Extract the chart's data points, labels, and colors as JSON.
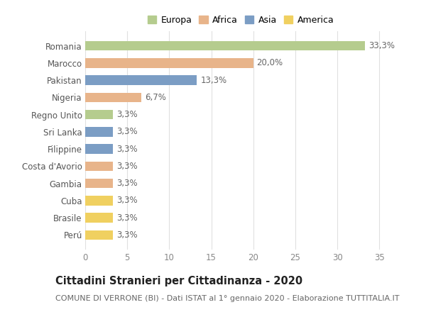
{
  "countries": [
    "Romania",
    "Marocco",
    "Pakistan",
    "Nigeria",
    "Regno Unito",
    "Sri Lanka",
    "Filippine",
    "Costa d'Avorio",
    "Gambia",
    "Cuba",
    "Brasile",
    "Perú"
  ],
  "values": [
    33.3,
    20.0,
    13.3,
    6.7,
    3.3,
    3.3,
    3.3,
    3.3,
    3.3,
    3.3,
    3.3,
    3.3
  ],
  "labels": [
    "33,3%",
    "20,0%",
    "13,3%",
    "6,7%",
    "3,3%",
    "3,3%",
    "3,3%",
    "3,3%",
    "3,3%",
    "3,3%",
    "3,3%",
    "3,3%"
  ],
  "continents": [
    "Europa",
    "Africa",
    "Asia",
    "Africa",
    "Europa",
    "Asia",
    "Asia",
    "Africa",
    "Africa",
    "America",
    "America",
    "America"
  ],
  "colors": {
    "Europa": "#b5cc8e",
    "Africa": "#e8b48a",
    "Asia": "#7b9dc4",
    "America": "#f0d060"
  },
  "xlim": [
    0,
    37
  ],
  "xticks": [
    0,
    5,
    10,
    15,
    20,
    25,
    30,
    35
  ],
  "title": "Cittadini Stranieri per Cittadinanza - 2020",
  "subtitle": "COMUNE DI VERRONE (BI) - Dati ISTAT al 1° gennaio 2020 - Elaborazione TUTTITALIA.IT",
  "background_color": "#ffffff",
  "grid_color": "#e0e0e0",
  "bar_height": 0.55,
  "label_fontsize": 8.5,
  "title_fontsize": 10.5,
  "subtitle_fontsize": 8,
  "ytick_fontsize": 8.5,
  "xtick_fontsize": 8.5,
  "legend_order": [
    "Europa",
    "Africa",
    "Asia",
    "America"
  ]
}
